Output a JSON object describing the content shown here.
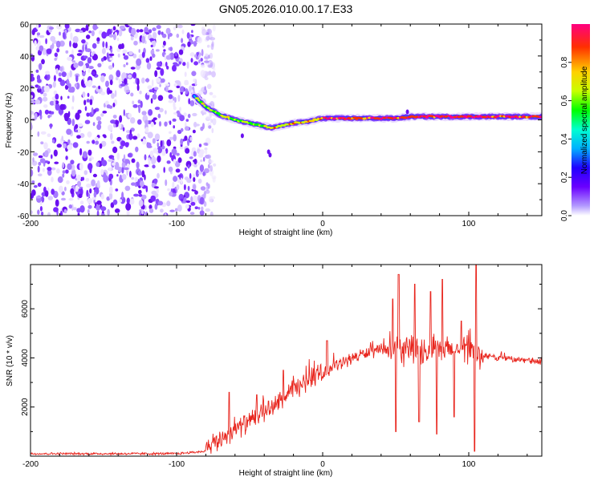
{
  "title": "GN05.2026.010.00.17.E33",
  "colors": {
    "snr_line": "#e8241c",
    "axes": "#000000"
  },
  "chart_data": [
    {
      "type": "heatmap",
      "name": "spectrogram",
      "xlabel": "Height of straight line (km)",
      "ylabel": "Frequency (Hz)",
      "xlim": [
        -200,
        150
      ],
      "ylim": [
        -60,
        60
      ],
      "xticks": [
        -200,
        -100,
        0,
        100
      ],
      "yticks": [
        60,
        40,
        20,
        0,
        -20,
        -40,
        -60
      ],
      "colorbar": {
        "label": "Normalized spectral amplitude",
        "range": [
          0,
          1
        ],
        "ticks": [
          0.0,
          0.2,
          0.4,
          0.6,
          0.8
        ],
        "tick_labels": [
          "0.0",
          "0.2",
          "0.4",
          "0.6",
          "0.8"
        ],
        "colormap": [
          "#ffffff",
          "#b49cff",
          "#6a00ff",
          "#2000ff",
          "#00b0ff",
          "#00ffd0",
          "#00ff00",
          "#c8ff00",
          "#ffd000",
          "#ff3000",
          "#ff0080"
        ]
      },
      "noise_region_x": [
        -200,
        -80
      ],
      "ridge": {
        "x": [
          -88,
          -80,
          -70,
          -60,
          -50,
          -40,
          -35,
          -30,
          -20,
          -10,
          0,
          10,
          20,
          30,
          40,
          50,
          60,
          70,
          80,
          90,
          100,
          110,
          120,
          130,
          140,
          150
        ],
        "y": [
          15,
          8,
          3,
          0,
          -2,
          -4,
          -5,
          -4,
          -2,
          -1,
          1,
          1,
          1,
          1,
          1,
          1,
          2,
          2,
          2,
          2,
          2,
          2,
          2,
          2,
          2,
          2
        ]
      }
    },
    {
      "type": "line",
      "name": "snr",
      "xlabel": "Height of straight line (km)",
      "ylabel": "SNR (10 * v/v)",
      "xlim": [
        -200,
        150
      ],
      "ylim": [
        0,
        7800
      ],
      "xticks": [
        -200,
        -100,
        0,
        100
      ],
      "yticks": [
        2000,
        4000,
        6000
      ],
      "envelope": {
        "x": [
          -200,
          -100,
          -80,
          -70,
          -60,
          -50,
          -40,
          -30,
          -20,
          -10,
          0,
          10,
          20,
          30,
          40,
          50,
          60,
          70,
          80,
          90,
          100,
          110,
          120,
          130,
          140,
          150
        ],
        "y": [
          100,
          100,
          200,
          700,
          1100,
          1400,
          1800,
          2200,
          2700,
          3100,
          3400,
          3700,
          4000,
          4200,
          4300,
          4300,
          4300,
          4300,
          4300,
          4300,
          4200,
          4100,
          4000,
          3950,
          3900,
          3800
        ]
      },
      "spikes": [
        {
          "x": -64,
          "y": 2600
        },
        {
          "x": -45,
          "y": 2500
        },
        {
          "x": -27,
          "y": 3500
        },
        {
          "x": -14,
          "y": 2800
        },
        {
          "x": 3,
          "y": 4700
        },
        {
          "x": 48,
          "y": 6400
        },
        {
          "x": 52,
          "y": 7400
        },
        {
          "x": 63,
          "y": 7000
        },
        {
          "x": 74,
          "y": 6700
        },
        {
          "x": 82,
          "y": 7200
        },
        {
          "x": 95,
          "y": 5500
        },
        {
          "x": 105,
          "y": 7800
        }
      ],
      "dips": [
        {
          "x": 50,
          "y": 1000
        },
        {
          "x": 66,
          "y": 1400
        },
        {
          "x": 78,
          "y": 900
        },
        {
          "x": 90,
          "y": 1600
        },
        {
          "x": 104,
          "y": 200
        }
      ]
    }
  ]
}
